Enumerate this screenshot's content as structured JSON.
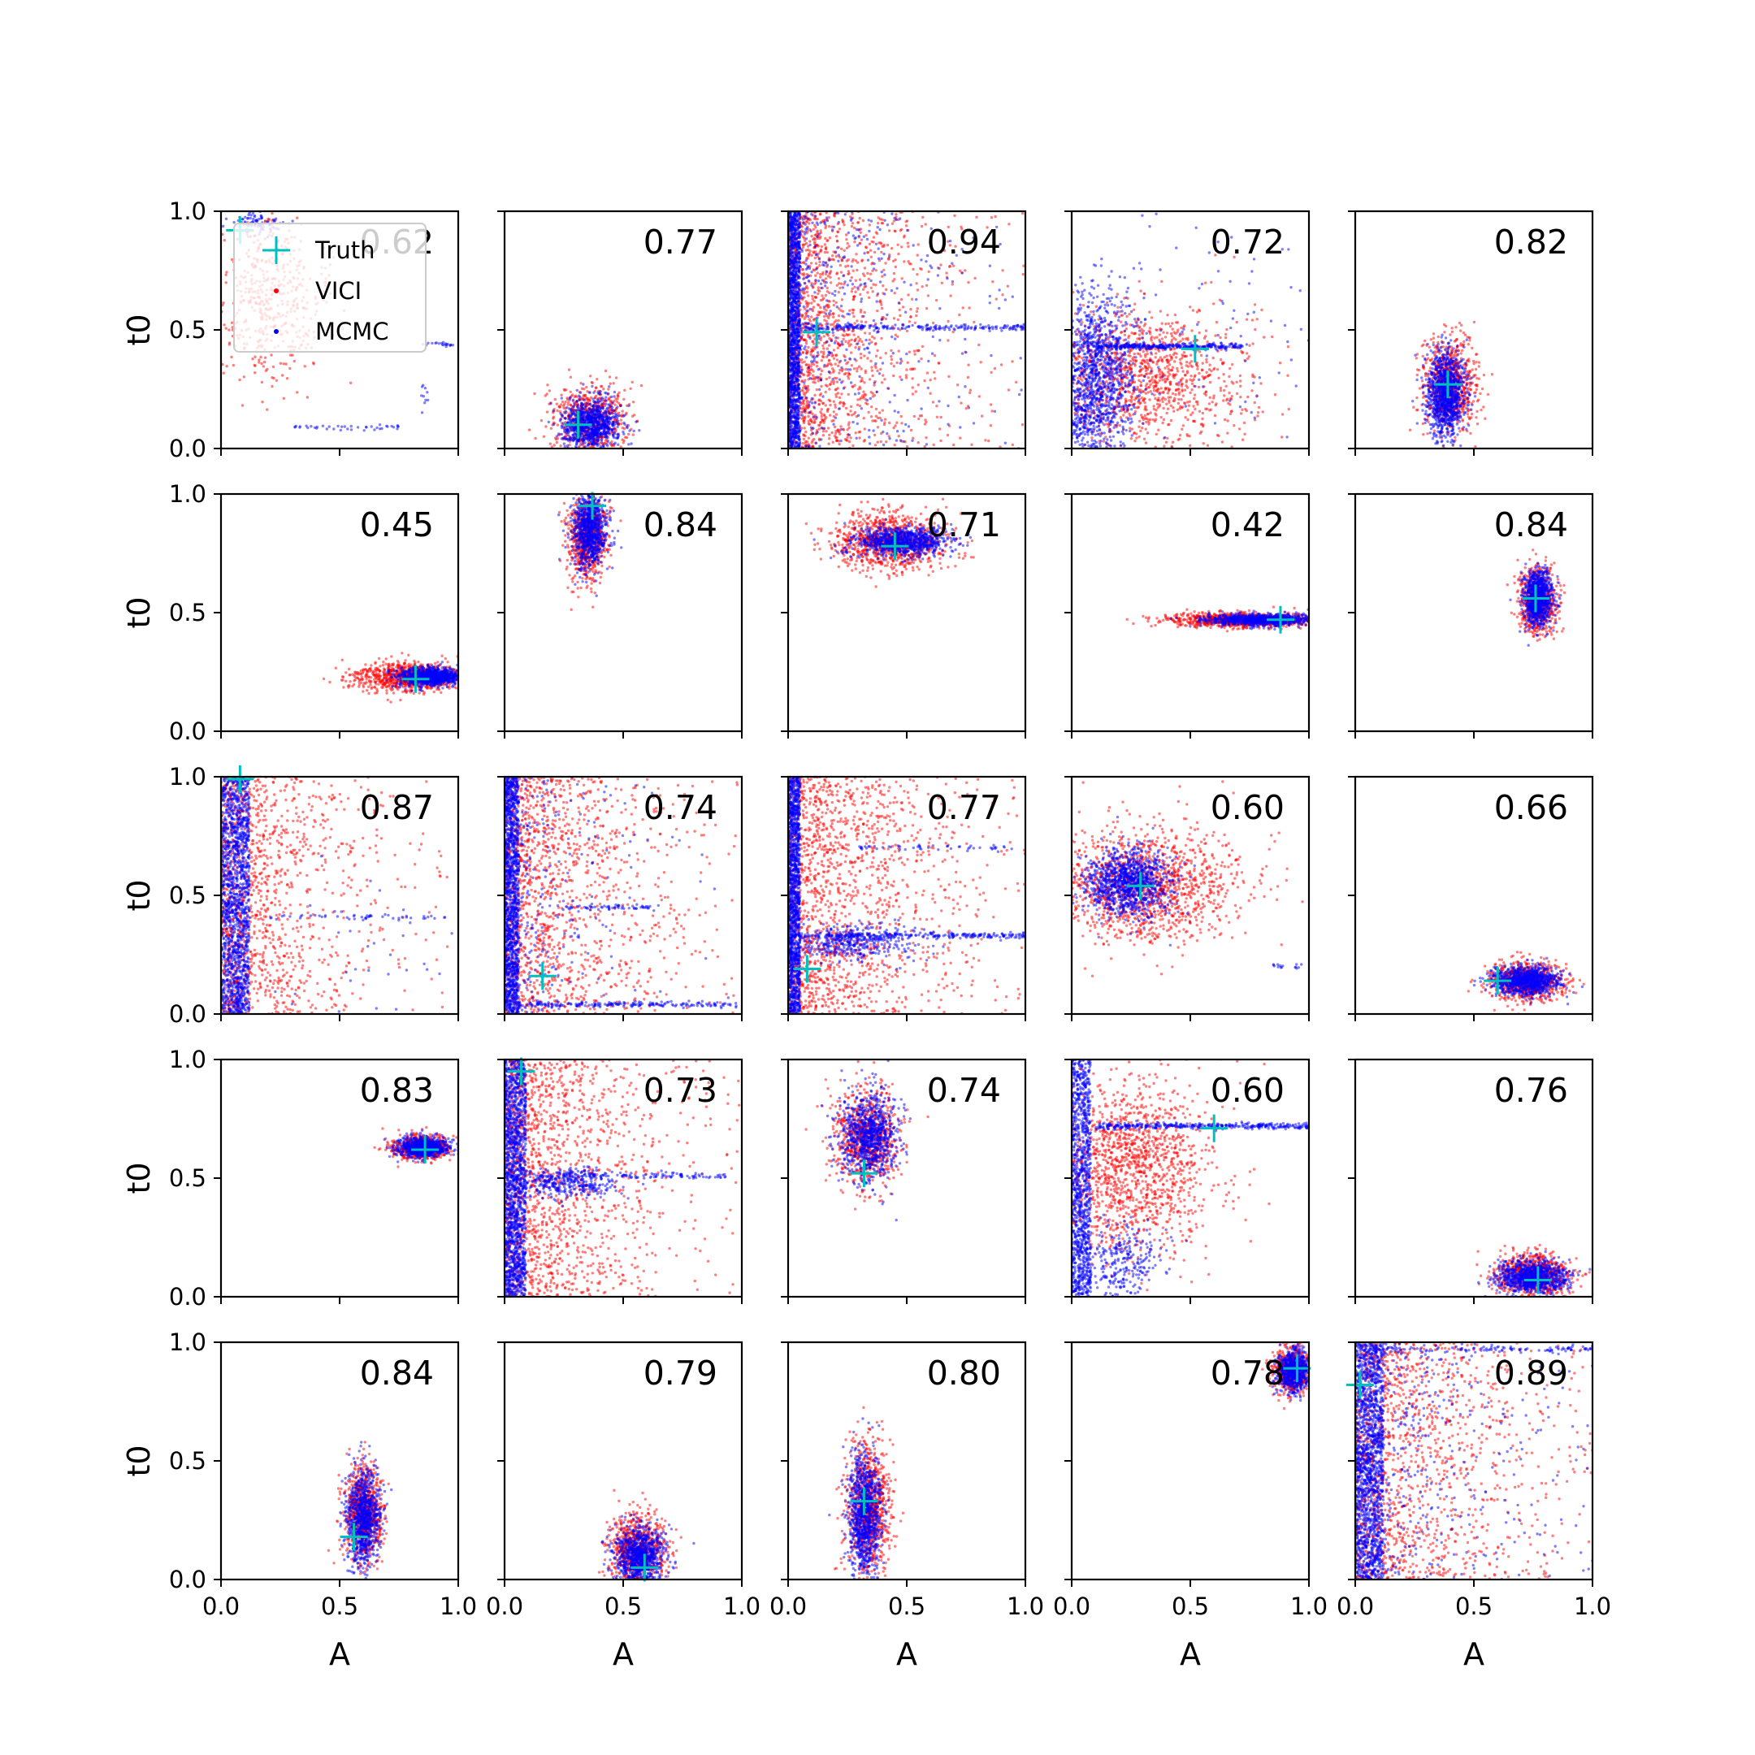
{
  "chart_data": {
    "type": "scatter",
    "title": "",
    "grid": {
      "rows": 5,
      "cols": 5
    },
    "xlabel": "A",
    "ylabel": "t0",
    "xlim": [
      0.0,
      1.0
    ],
    "ylim": [
      0.0,
      1.0
    ],
    "xticks": [
      "0.0",
      "0.5",
      "1.0"
    ],
    "yticks": [
      "0.0",
      "0.5",
      "1.0"
    ],
    "legend": {
      "position": "top-left of first panel",
      "entries": [
        {
          "label": "Truth",
          "marker": "plus",
          "color": "#00bfbf"
        },
        {
          "label": "VICI",
          "marker": "dot",
          "color": "#ff0000"
        },
        {
          "label": "MCMC",
          "marker": "dot",
          "color": "#0000ff"
        }
      ]
    },
    "colors": {
      "vici": "#ff0000",
      "mcmc": "#0000ff",
      "truth": "#00bfbf"
    },
    "panels": [
      {
        "score": "0.62",
        "truth": [
          0.08,
          0.92
        ],
        "blobs": [
          {
            "c": "vici",
            "kind": "gauss",
            "cx": 0.2,
            "cy": 0.62,
            "sx": 0.12,
            "sy": 0.18,
            "n": 500
          },
          {
            "c": "mcmc",
            "kind": "gauss",
            "cx": 0.16,
            "cy": 0.95,
            "sx": 0.05,
            "sy": 0.03,
            "n": 80
          },
          {
            "c": "mcmc",
            "kind": "hline",
            "x0": 0.3,
            "x1": 0.75,
            "y": 0.09,
            "n": 40
          },
          {
            "c": "mcmc",
            "kind": "hline",
            "x0": 0.85,
            "x1": 0.98,
            "y": 0.44,
            "n": 20
          },
          {
            "c": "mcmc",
            "kind": "gauss",
            "cx": 0.86,
            "cy": 0.22,
            "sx": 0.01,
            "sy": 0.03,
            "n": 10
          }
        ]
      },
      {
        "score": "0.77",
        "truth": [
          0.31,
          0.1
        ],
        "blobs": [
          {
            "c": "vici",
            "kind": "gauss",
            "cx": 0.36,
            "cy": 0.12,
            "sx": 0.08,
            "sy": 0.08,
            "n": 700
          },
          {
            "c": "mcmc",
            "kind": "gauss",
            "cx": 0.36,
            "cy": 0.1,
            "sx": 0.06,
            "sy": 0.055,
            "n": 900
          }
        ]
      },
      {
        "score": "0.94",
        "truth": [
          0.12,
          0.49
        ],
        "blobs": [
          {
            "c": "vici",
            "kind": "exp",
            "x0": 0.0,
            "lam": 0.25,
            "y0": 0.0,
            "y1": 1.0,
            "n": 1600
          },
          {
            "c": "mcmc",
            "kind": "wall",
            "x0": 0.0,
            "x1": 0.05,
            "y0": 0.0,
            "y1": 1.0,
            "n": 1400
          },
          {
            "c": "mcmc",
            "kind": "exp",
            "x0": 0.0,
            "lam": 0.25,
            "y0": 0.0,
            "y1": 1.0,
            "n": 500
          },
          {
            "c": "mcmc",
            "kind": "hline",
            "x0": 0.05,
            "x1": 1.0,
            "y": 0.51,
            "n": 220
          }
        ]
      },
      {
        "score": "0.72",
        "truth": [
          0.52,
          0.42
        ],
        "blobs": [
          {
            "c": "vici",
            "kind": "gauss",
            "cx": 0.3,
            "cy": 0.3,
            "sx": 0.22,
            "sy": 0.15,
            "n": 1300
          },
          {
            "c": "mcmc",
            "kind": "gauss",
            "cx": 0.1,
            "cy": 0.3,
            "sx": 0.08,
            "sy": 0.18,
            "n": 1300
          },
          {
            "c": "mcmc",
            "kind": "hline",
            "x0": 0.1,
            "x1": 0.72,
            "y": 0.43,
            "n": 320
          },
          {
            "c": "mcmc",
            "kind": "gauss",
            "cx": 0.5,
            "cy": 0.5,
            "sx": 0.3,
            "sy": 0.3,
            "n": 120
          }
        ]
      },
      {
        "score": "0.82",
        "truth": [
          0.39,
          0.27
        ],
        "blobs": [
          {
            "c": "vici",
            "kind": "gauss",
            "cx": 0.4,
            "cy": 0.27,
            "sx": 0.055,
            "sy": 0.1,
            "n": 800
          },
          {
            "c": "mcmc",
            "kind": "gauss",
            "cx": 0.38,
            "cy": 0.23,
            "sx": 0.04,
            "sy": 0.09,
            "n": 1100
          }
        ]
      },
      {
        "score": "0.45",
        "truth": [
          0.82,
          0.22
        ],
        "blobs": [
          {
            "c": "vici",
            "kind": "gauss",
            "cx": 0.8,
            "cy": 0.23,
            "sx": 0.12,
            "sy": 0.03,
            "n": 900
          },
          {
            "c": "mcmc",
            "kind": "gauss",
            "cx": 0.88,
            "cy": 0.23,
            "sx": 0.07,
            "sy": 0.02,
            "n": 900
          }
        ]
      },
      {
        "score": "0.84",
        "truth": [
          0.37,
          0.95
        ],
        "blobs": [
          {
            "c": "vici",
            "kind": "gauss",
            "cx": 0.35,
            "cy": 0.82,
            "sx": 0.04,
            "sy": 0.09,
            "n": 800
          },
          {
            "c": "mcmc",
            "kind": "gauss",
            "cx": 0.36,
            "cy": 0.85,
            "sx": 0.035,
            "sy": 0.08,
            "n": 900
          }
        ]
      },
      {
        "score": "0.71",
        "truth": [
          0.45,
          0.78
        ],
        "blobs": [
          {
            "c": "vici",
            "kind": "gauss",
            "cx": 0.43,
            "cy": 0.8,
            "sx": 0.12,
            "sy": 0.06,
            "n": 1000
          },
          {
            "c": "mcmc",
            "kind": "gauss",
            "cx": 0.48,
            "cy": 0.8,
            "sx": 0.1,
            "sy": 0.03,
            "n": 900
          }
        ]
      },
      {
        "score": "0.42",
        "truth": [
          0.88,
          0.47
        ],
        "blobs": [
          {
            "c": "vici",
            "kind": "gauss",
            "cx": 0.72,
            "cy": 0.47,
            "sx": 0.16,
            "sy": 0.015,
            "n": 900
          },
          {
            "c": "mcmc",
            "kind": "gauss",
            "cx": 0.8,
            "cy": 0.47,
            "sx": 0.11,
            "sy": 0.012,
            "n": 900
          }
        ]
      },
      {
        "score": "0.84",
        "truth": [
          0.76,
          0.56
        ],
        "blobs": [
          {
            "c": "vici",
            "kind": "gauss",
            "cx": 0.77,
            "cy": 0.55,
            "sx": 0.04,
            "sy": 0.07,
            "n": 700
          },
          {
            "c": "mcmc",
            "kind": "gauss",
            "cx": 0.77,
            "cy": 0.56,
            "sx": 0.03,
            "sy": 0.06,
            "n": 900
          }
        ]
      },
      {
        "score": "0.87",
        "truth": [
          0.08,
          0.99
        ],
        "blobs": [
          {
            "c": "vici",
            "kind": "exp",
            "x0": 0.0,
            "lam": 0.22,
            "y0": 0.0,
            "y1": 1.0,
            "n": 1300
          },
          {
            "c": "mcmc",
            "kind": "wall",
            "x0": 0.0,
            "x1": 0.12,
            "y0": 0.0,
            "y1": 1.0,
            "n": 1500
          },
          {
            "c": "mcmc",
            "kind": "hline",
            "x0": 0.2,
            "x1": 0.95,
            "y": 0.41,
            "n": 50
          },
          {
            "c": "mcmc",
            "kind": "gauss",
            "cx": 0.6,
            "cy": 0.2,
            "sx": 0.2,
            "sy": 0.2,
            "n": 40
          }
        ]
      },
      {
        "score": "0.74",
        "truth": [
          0.16,
          0.16
        ],
        "blobs": [
          {
            "c": "vici",
            "kind": "exp",
            "x0": 0.0,
            "lam": 0.25,
            "y0": 0.0,
            "y1": 1.0,
            "n": 1500
          },
          {
            "c": "mcmc",
            "kind": "wall",
            "x0": 0.0,
            "x1": 0.06,
            "y0": 0.0,
            "y1": 1.0,
            "n": 1300
          },
          {
            "c": "mcmc",
            "kind": "exp",
            "x0": 0.0,
            "lam": 0.2,
            "y0": 0.0,
            "y1": 1.0,
            "n": 300
          },
          {
            "c": "mcmc",
            "kind": "hline",
            "x0": 0.05,
            "x1": 1.0,
            "y": 0.04,
            "n": 200
          },
          {
            "c": "mcmc",
            "kind": "hline",
            "x0": 0.25,
            "x1": 0.65,
            "y": 0.45,
            "n": 60
          }
        ]
      },
      {
        "score": "0.77",
        "truth": [
          0.08,
          0.19
        ],
        "blobs": [
          {
            "c": "vici",
            "kind": "exp",
            "x0": 0.0,
            "lam": 0.28,
            "y0": 0.0,
            "y1": 1.0,
            "n": 1700
          },
          {
            "c": "mcmc",
            "kind": "wall",
            "x0": 0.0,
            "x1": 0.05,
            "y0": 0.0,
            "y1": 1.0,
            "n": 1400
          },
          {
            "c": "mcmc",
            "kind": "gauss",
            "cx": 0.25,
            "cy": 0.3,
            "sx": 0.15,
            "sy": 0.04,
            "n": 400
          },
          {
            "c": "mcmc",
            "kind": "hline",
            "x0": 0.05,
            "x1": 1.0,
            "y": 0.33,
            "n": 250
          },
          {
            "c": "mcmc",
            "kind": "hline",
            "x0": 0.3,
            "x1": 0.95,
            "y": 0.7,
            "n": 50
          }
        ]
      },
      {
        "score": "0.60",
        "truth": [
          0.29,
          0.54
        ],
        "blobs": [
          {
            "c": "vici",
            "kind": "gauss",
            "cx": 0.3,
            "cy": 0.54,
            "sx": 0.2,
            "sy": 0.12,
            "n": 1400
          },
          {
            "c": "mcmc",
            "kind": "gauss",
            "cx": 0.24,
            "cy": 0.55,
            "sx": 0.09,
            "sy": 0.07,
            "n": 1100
          },
          {
            "c": "mcmc",
            "kind": "hline",
            "x0": 0.85,
            "x1": 0.97,
            "y": 0.2,
            "n": 15
          }
        ]
      },
      {
        "score": "0.66",
        "truth": [
          0.6,
          0.14
        ],
        "blobs": [
          {
            "c": "vici",
            "kind": "gauss",
            "cx": 0.72,
            "cy": 0.14,
            "sx": 0.08,
            "sy": 0.04,
            "n": 800
          },
          {
            "c": "mcmc",
            "kind": "gauss",
            "cx": 0.72,
            "cy": 0.14,
            "sx": 0.07,
            "sy": 0.03,
            "n": 900
          }
        ]
      },
      {
        "score": "0.83",
        "truth": [
          0.86,
          0.62
        ],
        "blobs": [
          {
            "c": "vici",
            "kind": "gauss",
            "cx": 0.85,
            "cy": 0.63,
            "sx": 0.06,
            "sy": 0.025,
            "n": 700
          },
          {
            "c": "mcmc",
            "kind": "gauss",
            "cx": 0.85,
            "cy": 0.63,
            "sx": 0.05,
            "sy": 0.02,
            "n": 800
          }
        ]
      },
      {
        "score": "0.73",
        "truth": [
          0.07,
          0.95
        ],
        "blobs": [
          {
            "c": "vici",
            "kind": "exp",
            "x0": 0.0,
            "lam": 0.25,
            "y0": 0.0,
            "y1": 1.0,
            "n": 1600
          },
          {
            "c": "mcmc",
            "kind": "wall",
            "x0": 0.0,
            "x1": 0.09,
            "y0": 0.0,
            "y1": 1.0,
            "n": 1500
          },
          {
            "c": "mcmc",
            "kind": "gauss",
            "cx": 0.25,
            "cy": 0.48,
            "sx": 0.12,
            "sy": 0.03,
            "n": 350
          },
          {
            "c": "mcmc",
            "kind": "hline",
            "x0": 0.1,
            "x1": 0.95,
            "y": 0.51,
            "n": 120
          }
        ]
      },
      {
        "score": "0.74",
        "truth": [
          0.32,
          0.52
        ],
        "blobs": [
          {
            "c": "vici",
            "kind": "gauss",
            "cx": 0.33,
            "cy": 0.67,
            "sx": 0.07,
            "sy": 0.1,
            "n": 800
          },
          {
            "c": "mcmc",
            "kind": "gauss",
            "cx": 0.34,
            "cy": 0.68,
            "sx": 0.06,
            "sy": 0.09,
            "n": 900
          }
        ]
      },
      {
        "score": "0.60",
        "truth": [
          0.6,
          0.71
        ],
        "blobs": [
          {
            "c": "vici",
            "kind": "gauss",
            "cx": 0.25,
            "cy": 0.55,
            "sx": 0.18,
            "sy": 0.18,
            "n": 1400
          },
          {
            "c": "mcmc",
            "kind": "wall",
            "x0": 0.0,
            "x1": 0.08,
            "y0": 0.0,
            "y1": 1.0,
            "n": 1000
          },
          {
            "c": "mcmc",
            "kind": "hline",
            "x0": 0.1,
            "x1": 1.0,
            "y": 0.72,
            "n": 350
          },
          {
            "c": "mcmc",
            "kind": "gauss",
            "cx": 0.2,
            "cy": 0.15,
            "sx": 0.1,
            "sy": 0.08,
            "n": 300
          }
        ]
      },
      {
        "score": "0.76",
        "truth": [
          0.77,
          0.07
        ],
        "blobs": [
          {
            "c": "vici",
            "kind": "gauss",
            "cx": 0.75,
            "cy": 0.09,
            "sx": 0.08,
            "sy": 0.045,
            "n": 800
          },
          {
            "c": "mcmc",
            "kind": "gauss",
            "cx": 0.75,
            "cy": 0.08,
            "sx": 0.07,
            "sy": 0.035,
            "n": 900
          }
        ]
      },
      {
        "score": "0.84",
        "truth": [
          0.56,
          0.18
        ],
        "blobs": [
          {
            "c": "vici",
            "kind": "gauss",
            "cx": 0.6,
            "cy": 0.28,
            "sx": 0.04,
            "sy": 0.1,
            "n": 800
          },
          {
            "c": "mcmc",
            "kind": "gauss",
            "cx": 0.6,
            "cy": 0.26,
            "sx": 0.035,
            "sy": 0.1,
            "n": 900
          }
        ]
      },
      {
        "score": "0.79",
        "truth": [
          0.59,
          0.05
        ],
        "blobs": [
          {
            "c": "vici",
            "kind": "gauss",
            "cx": 0.56,
            "cy": 0.12,
            "sx": 0.06,
            "sy": 0.08,
            "n": 800
          },
          {
            "c": "mcmc",
            "kind": "gauss",
            "cx": 0.57,
            "cy": 0.1,
            "sx": 0.05,
            "sy": 0.06,
            "n": 900
          }
        ]
      },
      {
        "score": "0.80",
        "truth": [
          0.32,
          0.33
        ],
        "blobs": [
          {
            "c": "vici",
            "kind": "gauss",
            "cx": 0.34,
            "cy": 0.3,
            "sx": 0.045,
            "sy": 0.14,
            "n": 900
          },
          {
            "c": "mcmc",
            "kind": "gauss",
            "cx": 0.32,
            "cy": 0.27,
            "sx": 0.035,
            "sy": 0.13,
            "n": 1000
          }
        ]
      },
      {
        "score": "0.78",
        "truth": [
          0.95,
          0.89
        ],
        "blobs": [
          {
            "c": "vici",
            "kind": "gauss",
            "cx": 0.93,
            "cy": 0.88,
            "sx": 0.04,
            "sy": 0.05,
            "n": 600
          },
          {
            "c": "mcmc",
            "kind": "gauss",
            "cx": 0.94,
            "cy": 0.88,
            "sx": 0.035,
            "sy": 0.045,
            "n": 700
          }
        ]
      },
      {
        "score": "0.89",
        "truth": [
          0.02,
          0.82
        ],
        "blobs": [
          {
            "c": "vici",
            "kind": "exp",
            "x0": 0.0,
            "lam": 0.3,
            "y0": 0.0,
            "y1": 1.0,
            "n": 1500
          },
          {
            "c": "mcmc",
            "kind": "wall",
            "x0": 0.0,
            "x1": 0.12,
            "y0": 0.0,
            "y1": 1.0,
            "n": 1500
          },
          {
            "c": "mcmc",
            "kind": "exp",
            "x0": 0.0,
            "lam": 0.35,
            "y0": 0.0,
            "y1": 1.0,
            "n": 500
          },
          {
            "c": "mcmc",
            "kind": "hline",
            "x0": 0.05,
            "x1": 1.0,
            "y": 0.97,
            "n": 120
          }
        ]
      }
    ]
  }
}
